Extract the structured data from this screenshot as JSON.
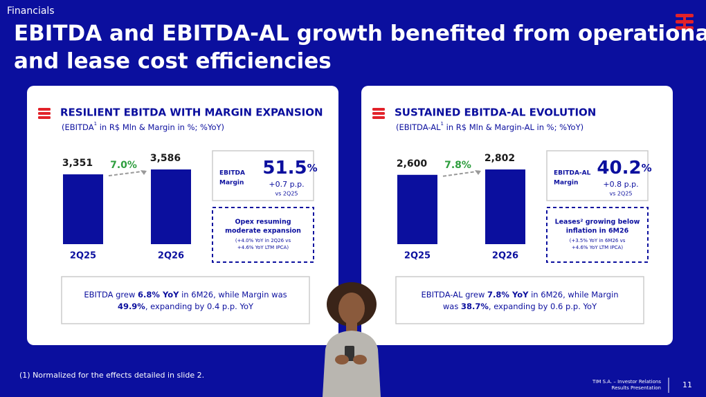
{
  "header": {
    "section": "Financials",
    "title_lines": [
      "EBITDA and EBITDA-AL growth benefited from operational",
      "and lease cost efficiencies"
    ]
  },
  "panels": [
    {
      "title": "RESILIENT EBITDA WITH MARGIN EXPANSION",
      "subtitle": {
        "before": "(EBITDA",
        "sup": "1",
        "after": " in R$ Mln & Margin in %; %YoY)"
      },
      "chart": {
        "type": "bar",
        "categories": [
          "2Q25",
          "2Q26"
        ],
        "values": [
          3351,
          3586
        ],
        "value_labels": [
          "3,351",
          "3,586"
        ],
        "growth": "7.0%",
        "color": "#0b0f9e"
      },
      "margin": {
        "label_lines": [
          "EBITDA",
          "Margin"
        ],
        "value": "51.5",
        "unit": "%",
        "change": "+0.7 p.p.",
        "ref": "vs 2Q25"
      },
      "note": {
        "title_lines": [
          "Opex resuming",
          "moderate expansion"
        ],
        "detail_lines": [
          "(+4.0% YoY in 2Q26 vs",
          "+4.6% YoY LTM IPCA)"
        ]
      },
      "summary": [
        [
          {
            "text": "EBITDA grew ",
            "bold": false
          },
          {
            "text": "6.8% YoY",
            "bold": true
          },
          {
            "text": " in 6M26, while Margin was",
            "bold": false
          }
        ],
        [
          {
            "text": "49.9%",
            "bold": true
          },
          {
            "text": ", expanding by 0.4 p.p. YoY",
            "bold": false
          }
        ]
      ]
    },
    {
      "title": "SUSTAINED EBITDA-AL EVOLUTION",
      "subtitle": {
        "before": "(EBITDA-AL",
        "sup": "1",
        "after": " in R$ Mln & Margin-AL in %; %YoY)"
      },
      "chart": {
        "type": "bar",
        "categories": [
          "2Q25",
          "2Q26"
        ],
        "values": [
          2600,
          2802
        ],
        "value_labels": [
          "2,600",
          "2,802"
        ],
        "growth": "7.8%",
        "color": "#0b0f9e"
      },
      "margin": {
        "label_lines": [
          "EBITDA-AL",
          "Margin"
        ],
        "value": "40.2",
        "unit": "%",
        "change": "+0.8 p.p.",
        "ref": "vs 2Q25"
      },
      "note": {
        "title_lines": [
          "Leases² growing below",
          "inflation in 6M26"
        ],
        "detail_lines": [
          "(+3.5% YoY in 6M26 vs",
          "+4.6% YoY LTM IPCA)"
        ]
      },
      "summary": [
        [
          {
            "text": "EBITDA-AL grew ",
            "bold": false
          },
          {
            "text": "7.8% YoY",
            "bold": true
          },
          {
            "text": " in 6M26, while Margin",
            "bold": false
          }
        ],
        [
          {
            "text": "was ",
            "bold": false
          },
          {
            "text": "38.7%",
            "bold": true
          },
          {
            "text": ", expanding by 0.6 p.p. YoY",
            "bold": false
          }
        ]
      ]
    }
  ],
  "footnote": "(1) Normalized for the effects detailed in slide 2.",
  "footer": {
    "company": "TIM S.A. – Investor Relations",
    "document": "Results Presentation",
    "page": "11"
  }
}
